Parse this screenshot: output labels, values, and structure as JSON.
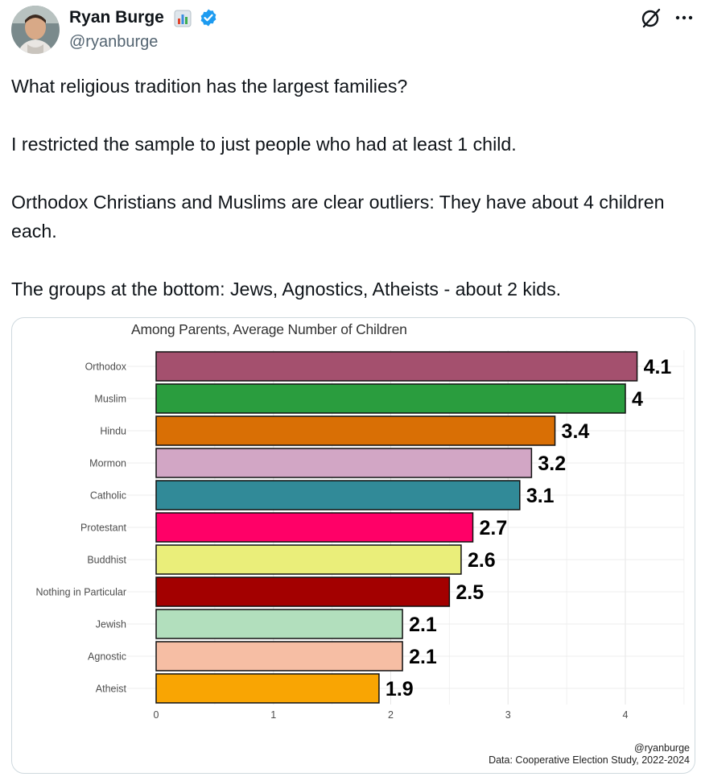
{
  "author": {
    "name": "Ryan Burge",
    "handle": "@ryanburge",
    "verified": true,
    "emoji_icon": "bar-chart-emoji-icon"
  },
  "actions": {
    "grok_icon": "grok-icon",
    "more_icon": "more-options-icon"
  },
  "tweet": {
    "paragraphs": [
      "What religious tradition has the largest families?",
      "I restricted the sample to just people who had at least 1 child.",
      "Orthodox Christians and Muslims are clear outliers: They have about 4 children each.",
      "The groups at the bottom: Jews, Agnostics, Atheists - about 2 kids."
    ]
  },
  "chart_data": {
    "type": "bar",
    "orientation": "horizontal",
    "title": "Among Parents, Average Number of Children",
    "categories": [
      "Orthodox",
      "Muslim",
      "Hindu",
      "Mormon",
      "Catholic",
      "Protestant",
      "Buddhist",
      "Nothing in Particular",
      "Jewish",
      "Agnostic",
      "Atheist"
    ],
    "values": [
      4.1,
      4.0,
      3.4,
      3.2,
      3.1,
      2.7,
      2.6,
      2.5,
      2.1,
      2.1,
      1.9
    ],
    "labels": [
      "4.1",
      "4",
      "3.4",
      "3.2",
      "3.1",
      "2.7",
      "2.6",
      "2.5",
      "2.1",
      "2.1",
      "1.9"
    ],
    "colors": [
      "#a4506e",
      "#2a9d3e",
      "#d96f05",
      "#d2a6c5",
      "#318a98",
      "#ff0067",
      "#eaee7a",
      "#a30000",
      "#b2dfbd",
      "#f6bea4",
      "#f9a503"
    ],
    "xlim": [
      0,
      4.5
    ],
    "xticks": [
      "0",
      "1",
      "2",
      "3",
      "4"
    ],
    "grid": true,
    "credit_handle": "@ryanburge",
    "source": "Data: Cooperative Election Study, 2022-2024"
  }
}
